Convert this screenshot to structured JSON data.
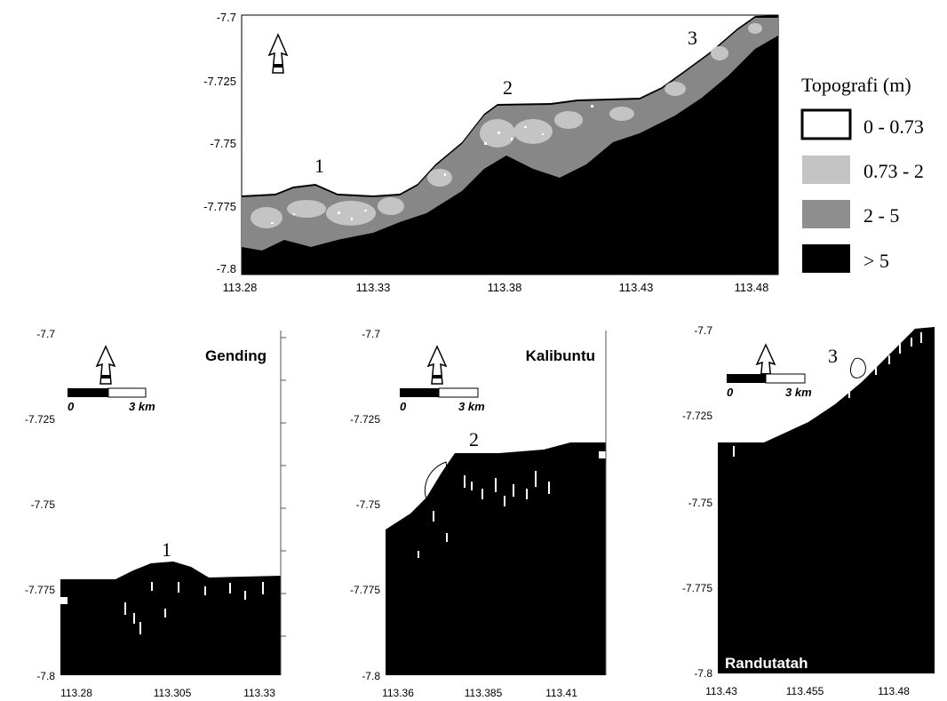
{
  "top_map": {
    "y_ticks": [
      "-7.7",
      "-7.725",
      "-7.75",
      "-7.775",
      "-7.8"
    ],
    "x_ticks": [
      "113.28",
      "113.33",
      "113.38",
      "113.43",
      "113.48"
    ],
    "site_labels": [
      "1",
      "2",
      "3"
    ],
    "legend": {
      "title": "Topografi (m)",
      "items": [
        {
          "label": "0 - 0.73",
          "color": "#ffffff"
        },
        {
          "label": "0.73 - 2",
          "color": "#c4c4c4"
        },
        {
          "label": "2 - 5",
          "color": "#8e8e8e"
        },
        {
          "label": "> 5",
          "color": "#000000"
        }
      ]
    }
  },
  "panels": [
    {
      "name": "Gending",
      "site": "1",
      "y_ticks": [
        "-7.7",
        "-7.725",
        "-7.75",
        "-7.775",
        "-7.8"
      ],
      "x_ticks": [
        "113.28",
        "113.305",
        "113.33"
      ],
      "scale_labels": [
        "0",
        "3 km"
      ]
    },
    {
      "name": "Kalibuntu",
      "site": "2",
      "y_ticks": [
        "-7.7",
        "-7.725",
        "-7.75",
        "-7.775",
        "-7.8"
      ],
      "x_ticks": [
        "113.36",
        "113.385",
        "113.41"
      ],
      "scale_labels": [
        "0",
        "3 km"
      ]
    },
    {
      "name": "Randutatah",
      "site": "3",
      "y_ticks": [
        "-7.7",
        "-7.725",
        "-7.75",
        "-7.775",
        "-7.8"
      ],
      "x_ticks": [
        "113.43",
        "113.455",
        "113.48"
      ],
      "scale_labels": [
        "0",
        "3 km"
      ]
    }
  ]
}
